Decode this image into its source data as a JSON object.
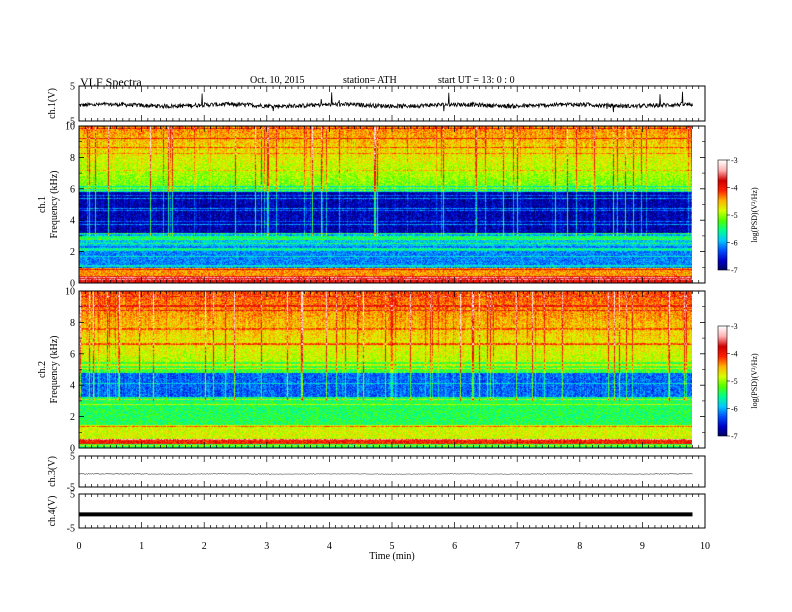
{
  "header": {
    "title": "VLF  Spectra",
    "date": "Oct. 10, 2015",
    "station": "station= ATH",
    "start": "start  UT  =    13: 0  : 0"
  },
  "chart_data": [
    {
      "type": "line",
      "name": "ch1-waveform",
      "ylabel": "ch.1(V)",
      "ylim": [
        -5,
        5
      ],
      "yticks": [
        "5",
        "-5"
      ],
      "xlim": [
        0,
        10
      ],
      "data_extent": [
        0,
        9.8
      ],
      "baseline": -0.5,
      "noise_amplitude": 0.6
    },
    {
      "type": "heatmap",
      "name": "ch1-spectrogram",
      "ylabel": "ch.1\nFrequency  (kHz)",
      "ylim": [
        0,
        10
      ],
      "yticks": [
        "0",
        "2",
        "4",
        "6",
        "8",
        "10"
      ],
      "xlim": [
        0,
        10
      ],
      "data_extent": [
        0,
        9.8
      ],
      "colorbar": {
        "label": "log(PSD)(V²/Hz)",
        "range": [
          -7,
          -3
        ],
        "ticks": [
          "-3",
          "-4",
          "-5",
          "-6",
          "-7"
        ]
      }
    },
    {
      "type": "heatmap",
      "name": "ch2-spectrogram",
      "ylabel": "ch.2\nFrequency  (kHz)",
      "ylim": [
        0,
        10
      ],
      "yticks": [
        "0",
        "2",
        "4",
        "6",
        "8",
        "10"
      ],
      "xlim": [
        0,
        10
      ],
      "data_extent": [
        0,
        9.8
      ],
      "colorbar": {
        "label": "log(PSD)(V²/Hz)",
        "range": [
          -7,
          -3
        ],
        "ticks": [
          "-3",
          "-4",
          "-5",
          "-6",
          "-7"
        ]
      }
    },
    {
      "type": "line",
      "name": "ch3-waveform",
      "ylabel": "ch.3(V)",
      "ylim": [
        -5,
        5
      ],
      "yticks": [
        "5",
        "-5"
      ],
      "xlim": [
        0,
        10
      ],
      "data_extent": [
        0,
        9.8
      ],
      "baseline": -0.8,
      "noise_amplitude": 0.1
    },
    {
      "type": "line",
      "name": "ch4-waveform",
      "ylabel": "ch.4(V)",
      "ylim": [
        -5,
        5
      ],
      "yticks": [
        "5",
        "-5"
      ],
      "xlim": [
        0,
        10
      ],
      "data_extent": [
        0,
        9.8
      ],
      "baseline": -1.0,
      "noise_amplitude": 0.0
    }
  ],
  "xaxis": {
    "label": "Time  (min)",
    "ticks": [
      "0",
      "1",
      "2",
      "3",
      "4",
      "5",
      "6",
      "7",
      "8",
      "9",
      "10"
    ]
  },
  "colors": {
    "psd_scale": [
      "#000060",
      "#0000c8",
      "#0050ff",
      "#00c8ff",
      "#00ff90",
      "#50ff00",
      "#d8ff00",
      "#ffb000",
      "#ff2000",
      "#d00000",
      "#ffb0b0",
      "#ffffff"
    ]
  }
}
